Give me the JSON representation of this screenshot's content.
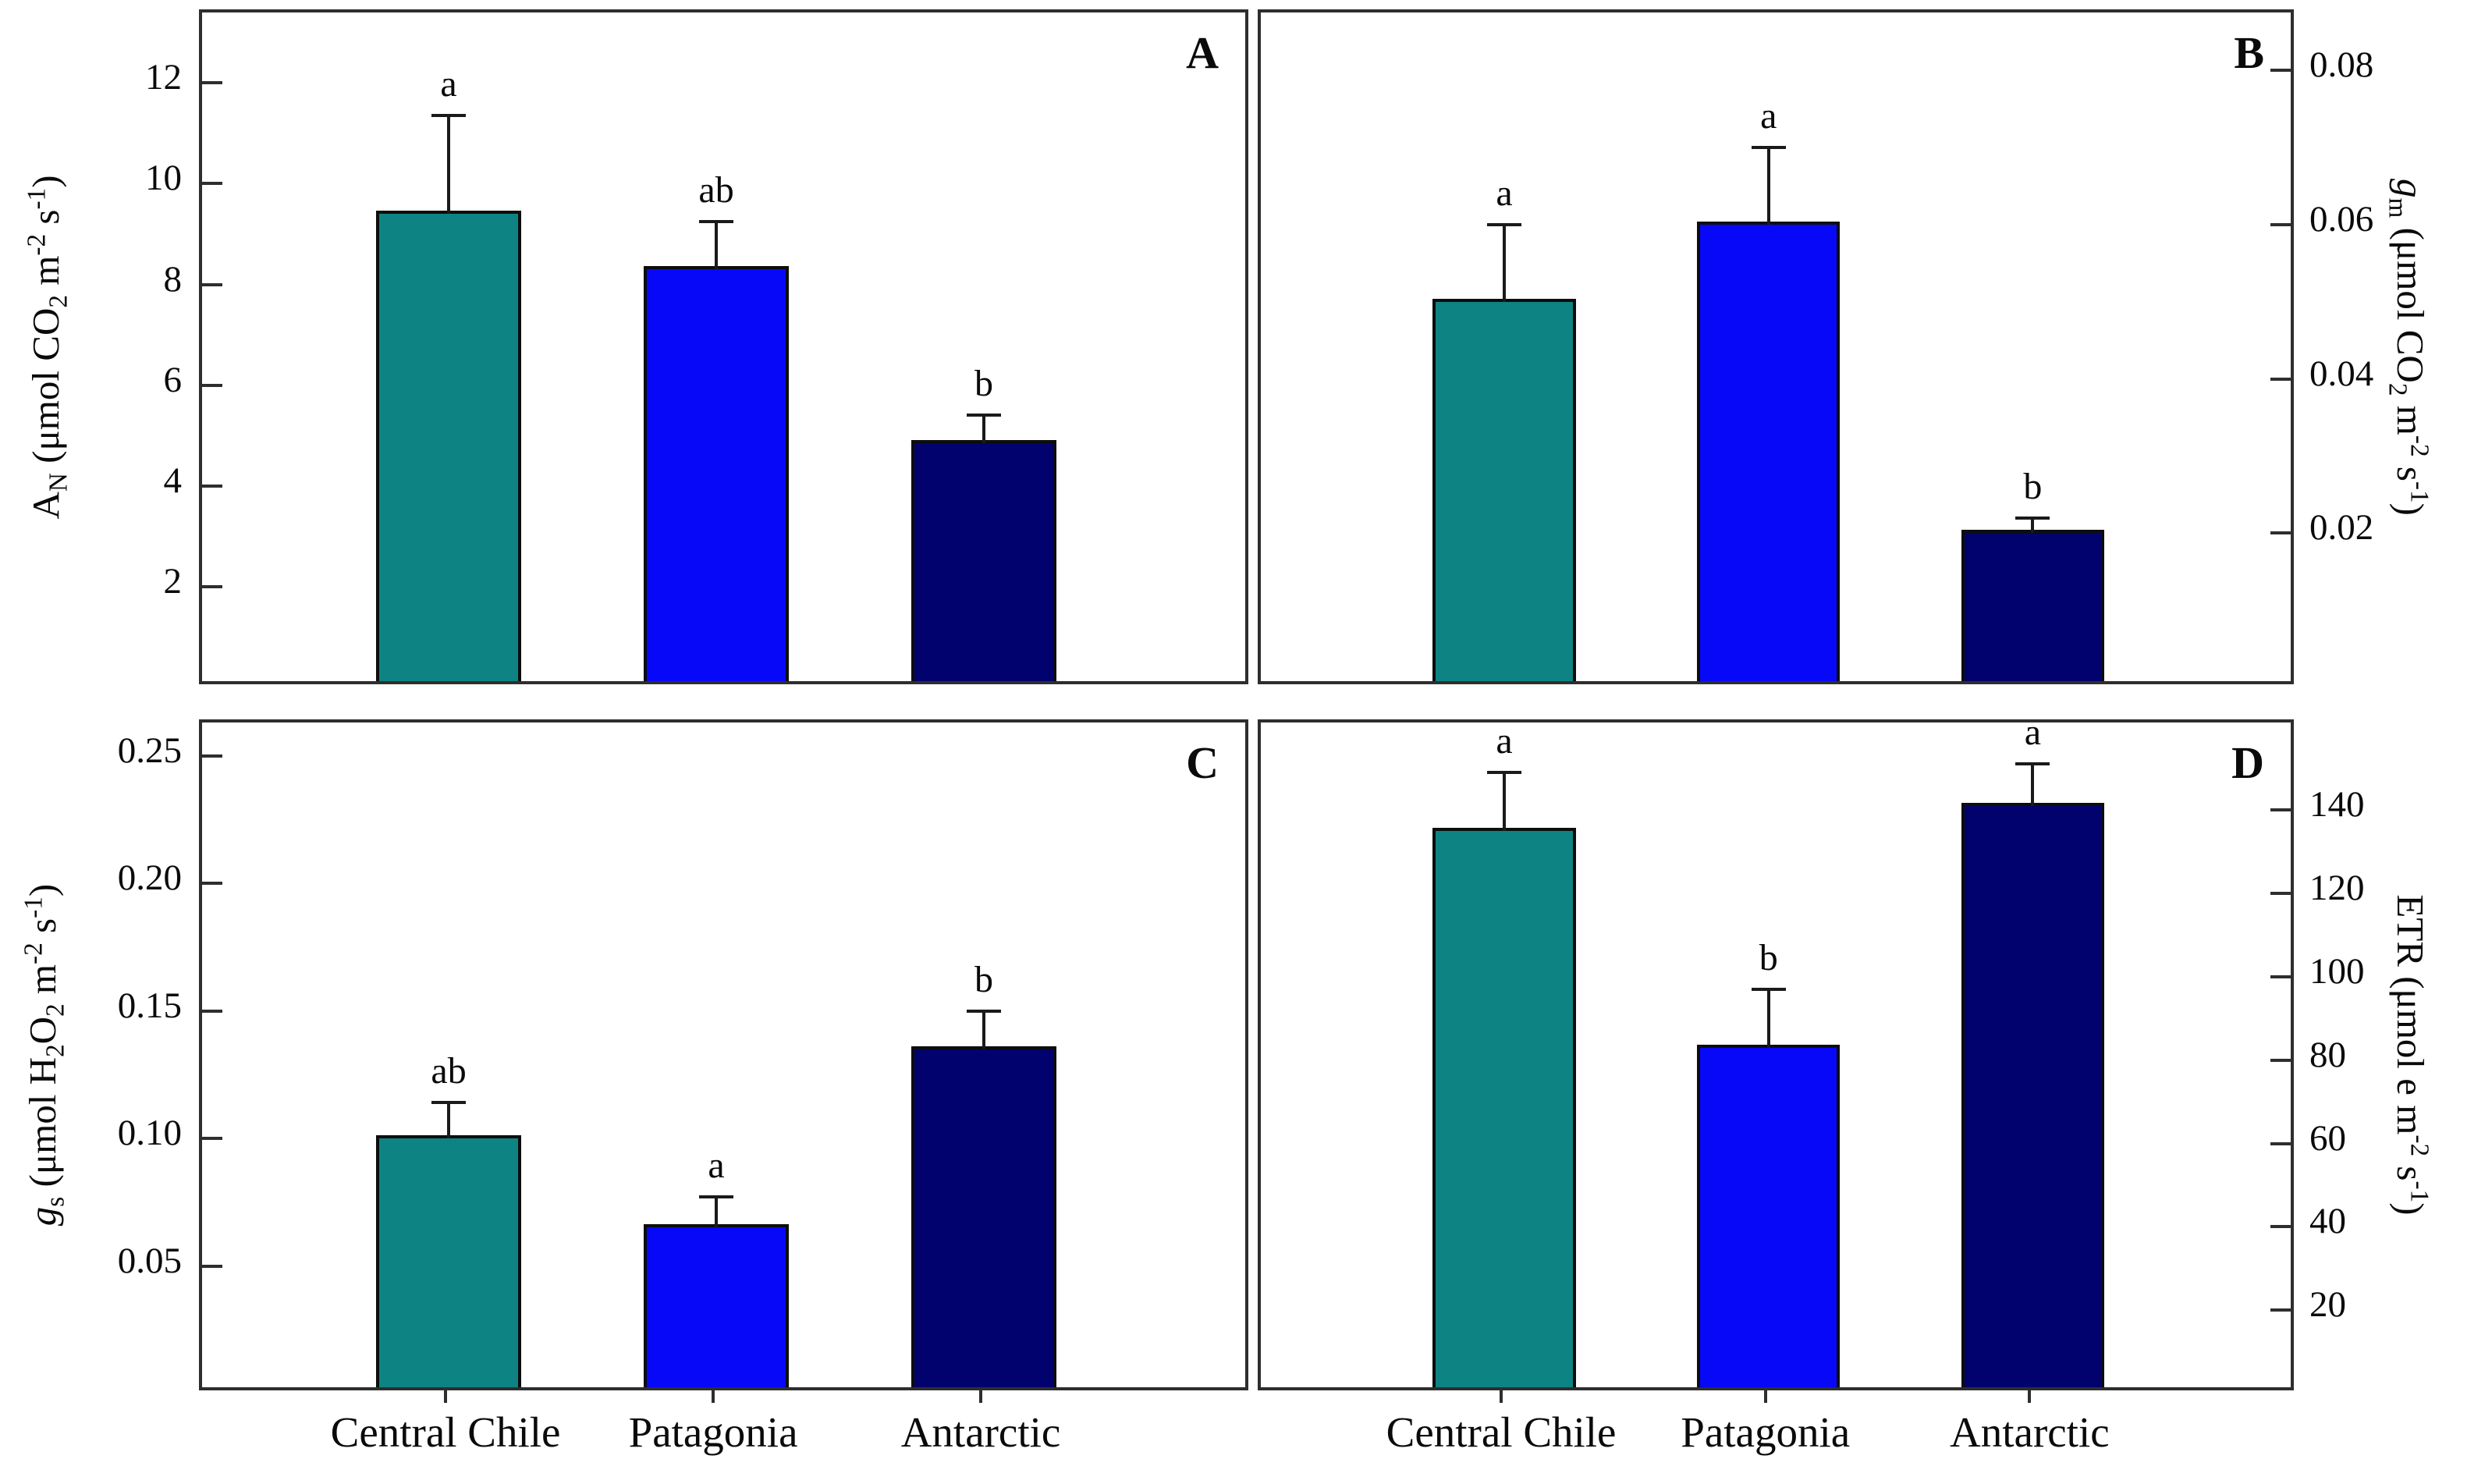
{
  "figure": {
    "groups": [
      "Central Chile",
      "Patagonia",
      "Antarctic"
    ],
    "bar_colors": [
      "#0e8383",
      "#0808f8",
      "#02026e"
    ],
    "panel_letters": [
      "A",
      "B",
      "C",
      "D"
    ]
  },
  "chart_data": [
    {
      "type": "bar",
      "panel_label": "A",
      "axis_side": "left",
      "ylabel_parts": [
        [
          "A"
        ],
        [
          "N",
          "sub"
        ],
        [
          " (",
          "plain"
        ],
        [
          "μmol CO"
        ],
        [
          "2",
          "sub"
        ],
        [
          " m"
        ],
        [
          "-2",
          "sup"
        ],
        [
          " s"
        ],
        [
          "-1",
          "sup"
        ],
        [
          ")"
        ]
      ],
      "categories": [
        "Central Chile",
        "Patagonia",
        "Antarctic"
      ],
      "values": [
        9.4,
        8.3,
        4.85
      ],
      "errors": [
        1.95,
        0.95,
        0.55
      ],
      "sig_letters": [
        "a",
        "ab",
        "b"
      ],
      "yticks": [
        2,
        4,
        6,
        8,
        10,
        12
      ],
      "ytick_labels": [
        "2",
        "4",
        "6",
        "8",
        "10",
        "12"
      ],
      "ymin": 0,
      "ymax": 13.4,
      "grid": false
    },
    {
      "type": "bar",
      "panel_label": "B",
      "axis_side": "right",
      "ylabel_parts": [
        [
          "g",
          "italic"
        ],
        [
          "m",
          "sub"
        ],
        [
          " (",
          "plain"
        ],
        [
          "μmol CO"
        ],
        [
          "2",
          "sub"
        ],
        [
          " m"
        ],
        [
          "-2",
          "sup"
        ],
        [
          " s"
        ],
        [
          "-1",
          "sup"
        ],
        [
          ")"
        ]
      ],
      "categories": [
        "Central Chile",
        "Patagonia",
        "Antarctic"
      ],
      "values": [
        0.05,
        0.06,
        0.02
      ],
      "errors": [
        0.01,
        0.01,
        0.002
      ],
      "sig_letters": [
        "a",
        "a",
        "b"
      ],
      "yticks": [
        0.02,
        0.04,
        0.06,
        0.08
      ],
      "ytick_labels": [
        "0.02",
        "0.04",
        "0.06",
        "0.08"
      ],
      "ymin": 0,
      "ymax": 0.0875,
      "grid": false
    },
    {
      "type": "bar",
      "panel_label": "C",
      "axis_side": "left",
      "ylabel_parts": [
        [
          "g",
          "italic"
        ],
        [
          "s",
          "sub"
        ],
        [
          " (",
          "plain"
        ],
        [
          "μmol H"
        ],
        [
          "2",
          "sub"
        ],
        [
          "O"
        ],
        [
          "2",
          "sub"
        ],
        [
          " m"
        ],
        [
          "-2",
          "sup"
        ],
        [
          " s"
        ],
        [
          "-1",
          "sup"
        ],
        [
          ")"
        ]
      ],
      "categories": [
        "Central Chile",
        "Patagonia",
        "Antarctic"
      ],
      "values": [
        0.1,
        0.065,
        0.135
      ],
      "errors": [
        0.014,
        0.012,
        0.015
      ],
      "sig_letters": [
        "ab",
        "a",
        "b"
      ],
      "yticks": [
        0.05,
        0.1,
        0.15,
        0.2,
        0.25
      ],
      "ytick_labels": [
        "0.05",
        "0.10",
        "0.15",
        "0.20",
        "0.25"
      ],
      "ymin": 0,
      "ymax": 0.263,
      "grid": false
    },
    {
      "type": "bar",
      "panel_label": "D",
      "axis_side": "right",
      "ylabel_parts": [
        [
          "ETR (μmol e m"
        ],
        [
          "-2",
          "sup"
        ],
        [
          " s"
        ],
        [
          "-1",
          "sup"
        ],
        [
          ")"
        ]
      ],
      "categories": [
        "Central Chile",
        "Patagonia",
        "Antarctic"
      ],
      "values": [
        135,
        83,
        141
      ],
      "errors": [
        14,
        14,
        10
      ],
      "sig_letters": [
        "a",
        "b",
        "a"
      ],
      "yticks": [
        20,
        40,
        60,
        80,
        100,
        120,
        140
      ],
      "ytick_labels": [
        "20",
        "40",
        "60",
        "80",
        "100",
        "120",
        "140"
      ],
      "ymin": 0,
      "ymax": 161,
      "grid": false
    }
  ]
}
